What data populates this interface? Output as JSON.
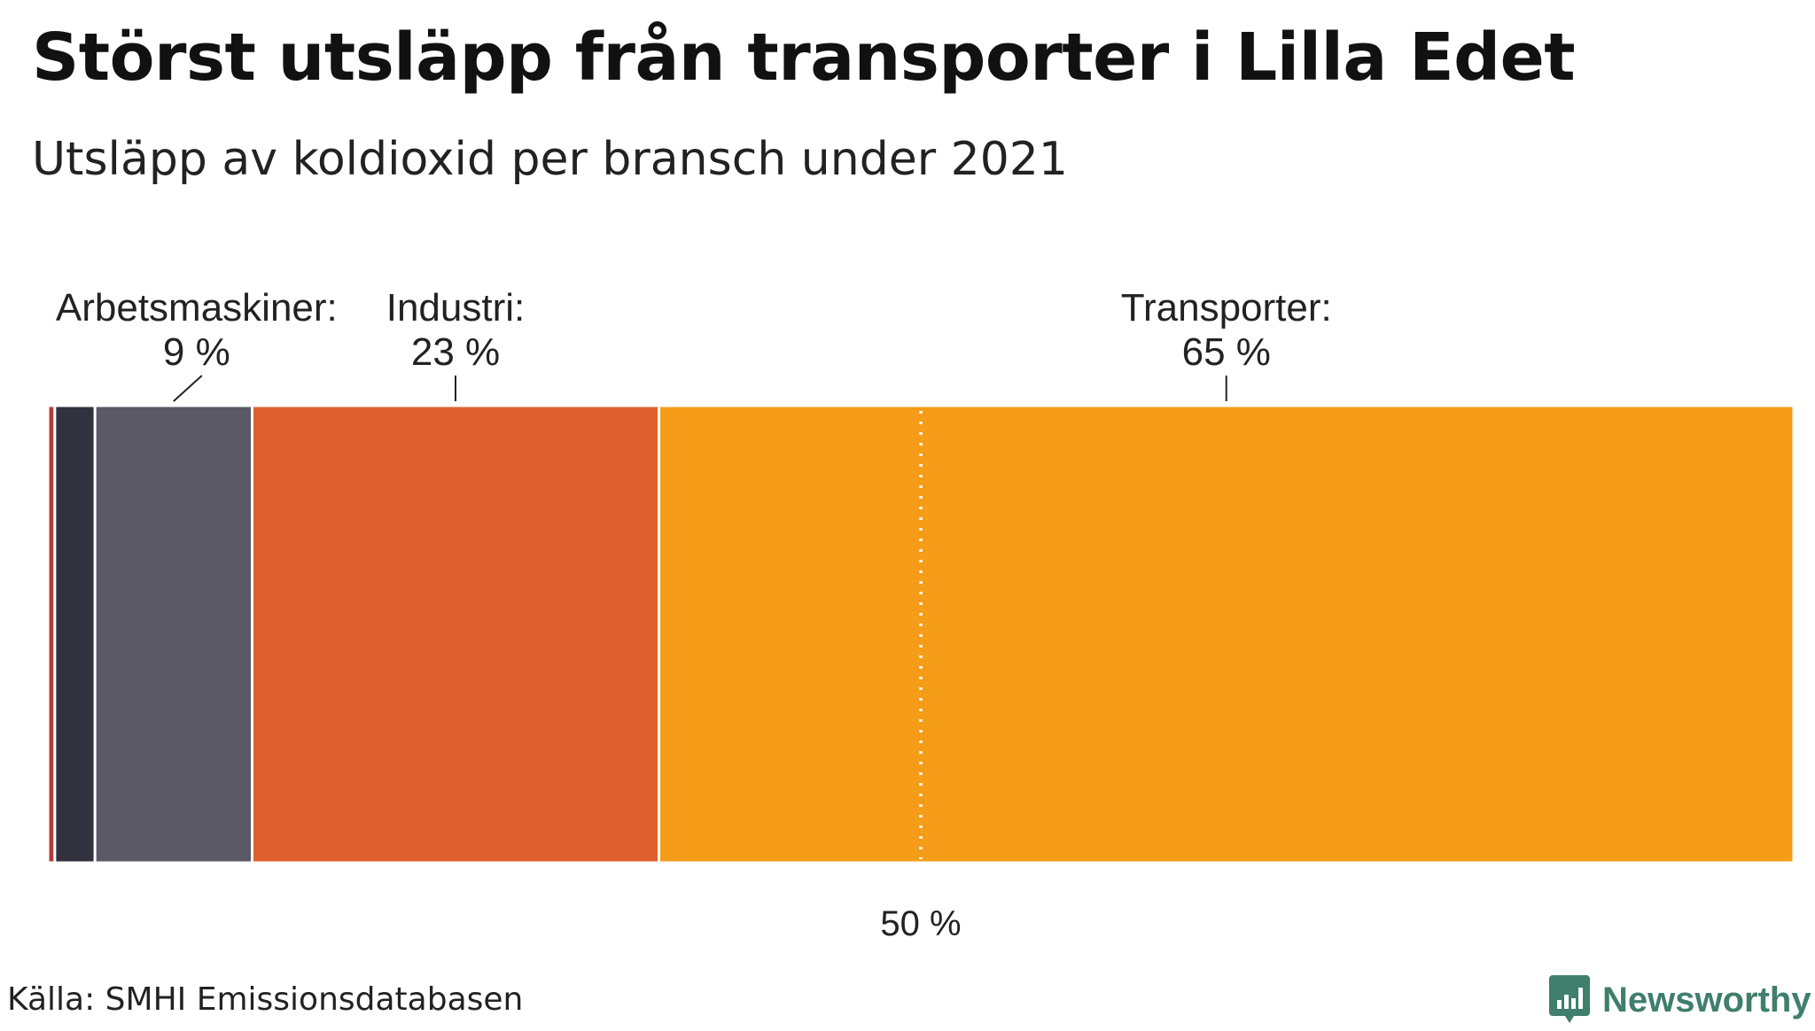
{
  "title": "Störst utsläpp från transporter i Lilla Edet",
  "subtitle": "Utsläpp av koldioxid per bransch under 2021",
  "source": "Källa: SMHI Emissionsdatabasen",
  "brand": {
    "name": "Newsworthy",
    "icon": "newsworthy-logo-icon",
    "color": "#3f7f6b"
  },
  "chart_data": {
    "type": "bar",
    "orientation": "horizontal-stacked-100",
    "xlim": [
      0,
      100
    ],
    "segments": [
      {
        "value": 0.4,
        "color": "#b4393a"
      },
      {
        "value": 2.3,
        "color": "#31313f"
      },
      {
        "name": "Arbetsmaskiner",
        "value": 9,
        "label": "Arbetsmaskiner:",
        "value_label": "9 %",
        "color": "#5b5966"
      },
      {
        "name": "Industri",
        "value": 23.3,
        "label": "Industri:",
        "value_label": "23 %",
        "color": "#e05f2e"
      },
      {
        "name": "Transporter",
        "value": 65,
        "label": "Transporter:",
        "value_label": "65 %",
        "color": "#f59d18"
      }
    ],
    "reference_line": {
      "value": 50,
      "label": "50 %",
      "style": "dotted",
      "color": "#ffffff"
    }
  }
}
